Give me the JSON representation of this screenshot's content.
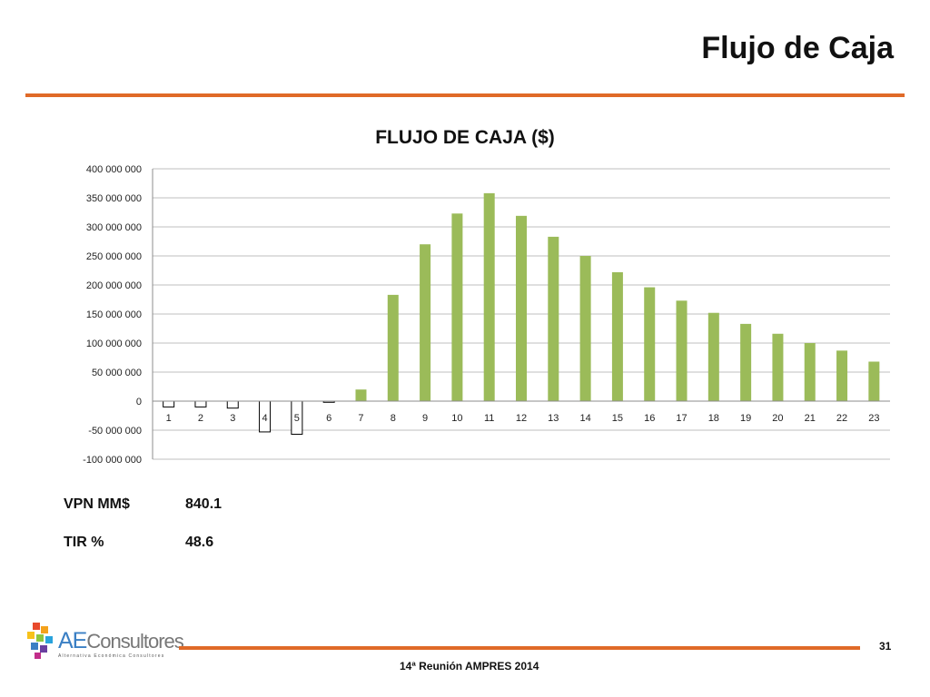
{
  "slide": {
    "title": "Flujo de Caja",
    "footer": "14ª Reunión AMPRES 2014",
    "page_number": "31"
  },
  "logo": {
    "brand_prefix": "AE",
    "brand_suffix": "Consultores",
    "tagline": "Alternativa Económica Consultores"
  },
  "metrics": [
    {
      "label": "VPN MM$",
      "value": "840.1"
    },
    {
      "label": "TIR %",
      "value": "48.6"
    }
  ],
  "colors": {
    "accent": "#e06a28",
    "positive_bar": "#9bbb59",
    "negative_bar_fill": "#ffffff",
    "negative_bar_stroke": "#000000",
    "grid": "#bfbfbf"
  },
  "chart_data": {
    "type": "bar",
    "title": "FLUJO DE CAJA ($)",
    "xlabel": "",
    "ylabel": "",
    "categories": [
      "1",
      "2",
      "3",
      "4",
      "5",
      "6",
      "7",
      "8",
      "9",
      "10",
      "11",
      "12",
      "13",
      "14",
      "15",
      "16",
      "17",
      "18",
      "19",
      "20",
      "21",
      "22",
      "23"
    ],
    "series": [
      {
        "values": [
          -10000000,
          -10000000,
          -12000000,
          -53000000,
          -57000000,
          -2000000,
          20000000,
          183000000,
          270000000,
          323000000,
          358000000,
          319000000,
          283000000,
          250000000,
          222000000,
          196000000,
          173000000,
          152000000,
          133000000,
          116000000,
          100000000,
          87000000,
          68000000
        ]
      }
    ],
    "ylim": [
      -100000000,
      400000000
    ],
    "yticks": [
      400000000,
      350000000,
      300000000,
      250000000,
      200000000,
      150000000,
      100000000,
      50000000,
      0,
      -50000000,
      -100000000
    ],
    "ytick_labels": [
      "400 000 000",
      "350 000 000",
      "300 000 000",
      "250 000 000",
      "200 000 000",
      "150 000 000",
      "100 000 000",
      "50 000 000",
      "0",
      "-50 000 000",
      "-100 000 000"
    ],
    "grid": true,
    "legend": "none"
  }
}
